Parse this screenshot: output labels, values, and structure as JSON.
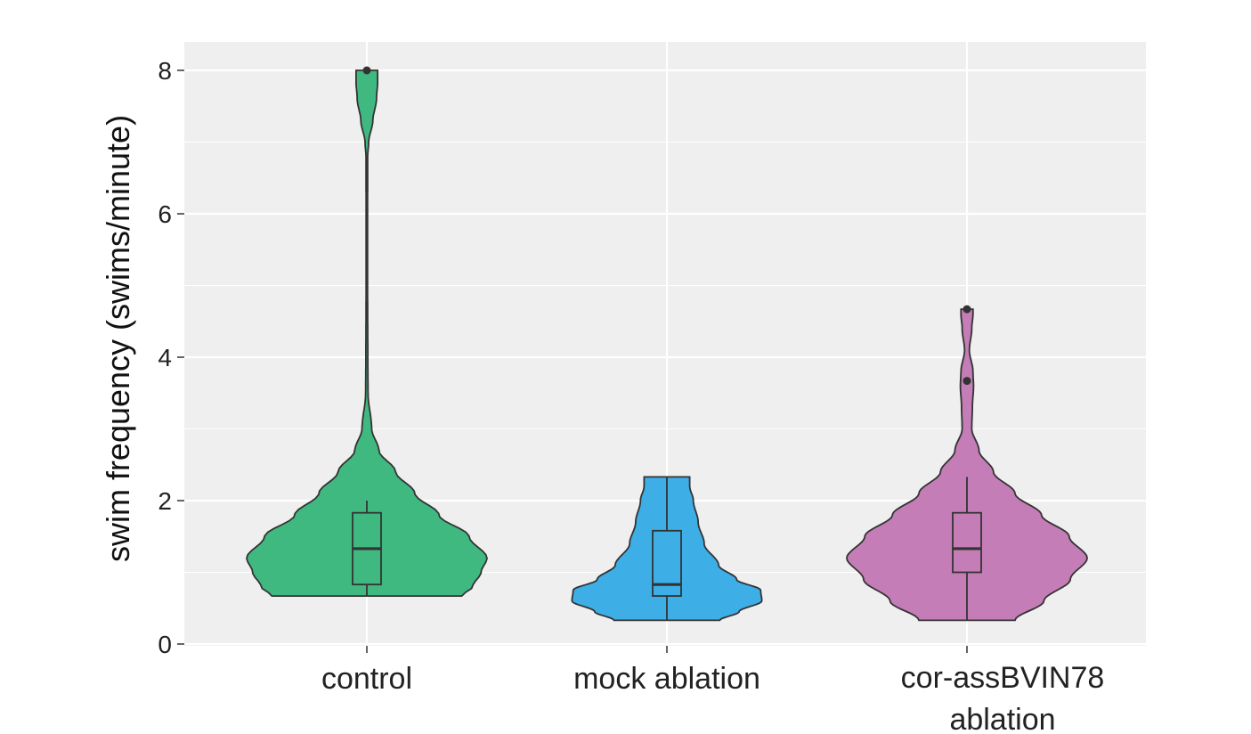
{
  "chart_data": {
    "type": "violin",
    "title": "",
    "xlabel": "",
    "ylabel": "swim frequency (swims/minute)",
    "ylim": [
      0,
      8.4
    ],
    "yticks": [
      0,
      2,
      4,
      6,
      8
    ],
    "grid": true,
    "legend": "none",
    "groups": [
      {
        "label": "control",
        "color": "#40b981",
        "min": 0.67,
        "max": 8.0,
        "box": {
          "q1": 0.83,
          "median": 1.33,
          "q3": 1.83,
          "whisker_low": 0.67,
          "whisker_high": 2.0
        },
        "outliers": [
          8.0
        ],
        "density": [
          [
            0.67,
            0.79
          ],
          [
            0.8,
            0.88
          ],
          [
            1.0,
            0.95
          ],
          [
            1.2,
            1.0
          ],
          [
            1.5,
            0.85
          ],
          [
            1.8,
            0.6
          ],
          [
            2.1,
            0.4
          ],
          [
            2.4,
            0.24
          ],
          [
            2.7,
            0.1
          ],
          [
            3.0,
            0.04
          ],
          [
            3.5,
            0.01
          ],
          [
            4.0,
            0.008
          ],
          [
            5.0,
            0.006
          ],
          [
            6.0,
            0.006
          ],
          [
            6.8,
            0.007
          ],
          [
            7.0,
            0.015
          ],
          [
            7.3,
            0.05
          ],
          [
            7.6,
            0.08
          ],
          [
            7.85,
            0.09
          ],
          [
            8.0,
            0.09
          ]
        ]
      },
      {
        "label": "mock ablation",
        "color": "#3daee6",
        "min": 0.33,
        "max": 2.33,
        "box": {
          "q1": 0.67,
          "median": 0.83,
          "q3": 1.58,
          "whisker_low": 0.33,
          "whisker_high": 2.33
        },
        "outliers": [],
        "density": [
          [
            0.33,
            0.44
          ],
          [
            0.45,
            0.6
          ],
          [
            0.6,
            0.79
          ],
          [
            0.75,
            0.78
          ],
          [
            0.9,
            0.58
          ],
          [
            1.1,
            0.43
          ],
          [
            1.4,
            0.31
          ],
          [
            1.7,
            0.26
          ],
          [
            2.0,
            0.22
          ],
          [
            2.2,
            0.19
          ],
          [
            2.33,
            0.19
          ]
        ]
      },
      {
        "label": "cor-assBVIN78 ablation",
        "color": "#c47db6",
        "min": 0.33,
        "max": 4.67,
        "box": {
          "q1": 1.0,
          "median": 1.33,
          "q3": 1.83,
          "whisker_low": 0.33,
          "whisker_high": 2.33
        },
        "outliers": [
          3.67,
          4.67
        ],
        "density": [
          [
            0.33,
            0.4
          ],
          [
            0.6,
            0.64
          ],
          [
            0.9,
            0.86
          ],
          [
            1.2,
            1.0
          ],
          [
            1.5,
            0.85
          ],
          [
            1.8,
            0.62
          ],
          [
            2.1,
            0.4
          ],
          [
            2.4,
            0.22
          ],
          [
            2.7,
            0.1
          ],
          [
            3.0,
            0.04
          ],
          [
            3.3,
            0.045
          ],
          [
            3.6,
            0.055
          ],
          [
            3.8,
            0.05
          ],
          [
            4.1,
            0.02
          ],
          [
            4.4,
            0.04
          ],
          [
            4.6,
            0.05
          ],
          [
            4.67,
            0.05
          ]
        ]
      }
    ]
  }
}
